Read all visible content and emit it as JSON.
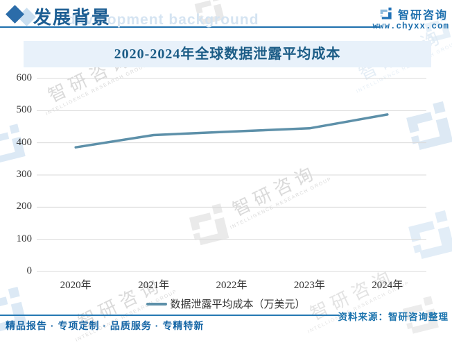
{
  "colors": {
    "accent_blue": "#1d6fad",
    "header_title": "#1d5e93",
    "banner_bg": "#e8f1fa",
    "banner_text": "#1b5c86",
    "line_series": "#5d90a9",
    "gridline": "#d9d9d9",
    "footer_blue": "#1565a5"
  },
  "header": {
    "section_title": "发展背景",
    "section_ghost": "development background",
    "bullet_icon": "diamond-icon",
    "brand_logo_icon": "zhiyan-logo-icon",
    "brand_name": "智研咨询",
    "brand_url": "www.chyxx.com"
  },
  "chart_data": {
    "type": "line",
    "title": "2020-2024年全球数据泄露平均成本",
    "categories": [
      "2020年",
      "2021年",
      "2022年",
      "2023年",
      "2024年"
    ],
    "series": [
      {
        "name": "数据泄露平均成本（万美元）",
        "values": [
          386,
          424,
          435,
          445,
          488
        ],
        "color": "#5d90a9"
      }
    ],
    "xlabel": "",
    "ylabel": "",
    "ylim": [
      0,
      600
    ],
    "ytick_step": 100,
    "grid": true,
    "legend_position": "bottom"
  },
  "footer": {
    "source": "资料来源：智研咨询整理",
    "slogan": "精品报告 · 专项定制 · 品质服务 · 专精特新"
  },
  "watermark": {
    "text": "智研咨询",
    "subtext": "INTELLIGENCE RESEARCH GROUP"
  }
}
